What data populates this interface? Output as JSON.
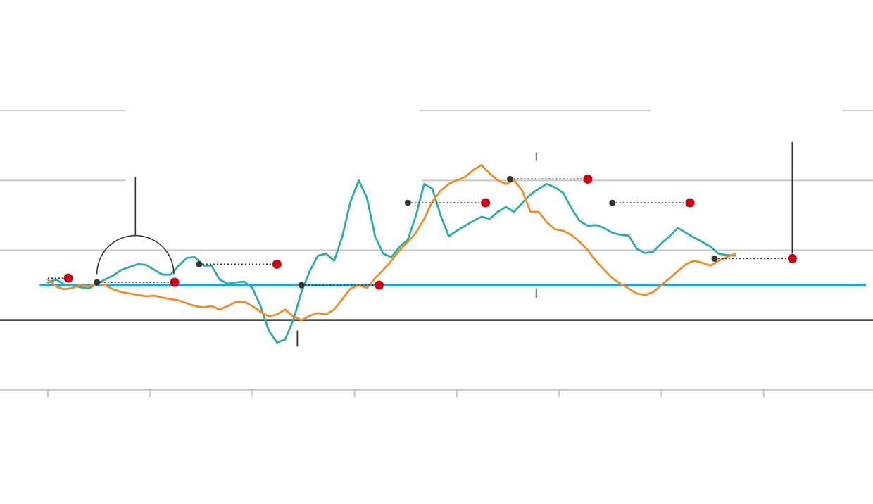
{
  "chart_data": {
    "type": "line",
    "colors": {
      "series_a": "#2ab0a3",
      "series_b": "#f28c26",
      "baseline": "#1aa3e8",
      "zero_line": "#333333",
      "grid": "#c8c8c8",
      "marker": "#cc0011",
      "anchor": "#333333"
    },
    "grid": true,
    "xlim": [
      0,
      100
    ],
    "ylim": [
      -2,
      4
    ],
    "gridlines_y": [
      -1,
      1,
      2,
      3
    ],
    "zero_y": 0,
    "baseline_y": 0.5,
    "x_ticks": [
      0,
      12.5,
      25,
      37.5,
      50,
      62.5,
      75,
      87.5
    ],
    "series": [
      {
        "key": "teal",
        "points": [
          [
            0,
            0.54
          ],
          [
            1,
            0.58
          ],
          [
            2,
            0.51
          ],
          [
            3,
            0.5
          ],
          [
            4,
            0.47
          ],
          [
            5,
            0.45
          ],
          [
            6,
            0.52
          ],
          [
            7,
            0.58
          ],
          [
            8,
            0.64
          ],
          [
            9,
            0.72
          ],
          [
            10,
            0.76
          ],
          [
            11,
            0.8
          ],
          [
            12,
            0.79
          ],
          [
            13,
            0.72
          ],
          [
            14,
            0.65
          ],
          [
            15,
            0.65
          ],
          [
            16,
            0.78
          ],
          [
            17,
            0.89
          ],
          [
            18,
            0.9
          ],
          [
            19,
            0.78
          ],
          [
            20,
            0.78
          ],
          [
            21,
            0.58
          ],
          [
            22,
            0.52
          ],
          [
            23,
            0.54
          ],
          [
            24,
            0.55
          ],
          [
            25,
            0.46
          ],
          [
            26,
            0.2
          ],
          [
            27,
            -0.15
          ],
          [
            28,
            -0.32
          ],
          [
            29,
            -0.28
          ],
          [
            30,
            0.0
          ],
          [
            31,
            0.4
          ],
          [
            32,
            0.7
          ],
          [
            33,
            0.92
          ],
          [
            34,
            0.95
          ],
          [
            35,
            0.85
          ],
          [
            36,
            1.2
          ],
          [
            37,
            1.7
          ],
          [
            38,
            2.0
          ],
          [
            39,
            1.75
          ],
          [
            40,
            1.2
          ],
          [
            41,
            0.95
          ],
          [
            42,
            0.9
          ],
          [
            43,
            1.05
          ],
          [
            44,
            1.15
          ],
          [
            45,
            1.5
          ],
          [
            46,
            1.95
          ],
          [
            47,
            1.88
          ],
          [
            48,
            1.5
          ],
          [
            49,
            1.2
          ],
          [
            50,
            1.28
          ],
          [
            51,
            1.35
          ],
          [
            52,
            1.42
          ],
          [
            53,
            1.48
          ],
          [
            54,
            1.45
          ],
          [
            55,
            1.55
          ],
          [
            56,
            1.62
          ],
          [
            57,
            1.55
          ],
          [
            58,
            1.68
          ],
          [
            59,
            1.8
          ],
          [
            60,
            1.88
          ],
          [
            61,
            1.95
          ],
          [
            62,
            1.9
          ],
          [
            63,
            1.82
          ],
          [
            64,
            1.6
          ],
          [
            65,
            1.42
          ],
          [
            66,
            1.35
          ],
          [
            67,
            1.36
          ],
          [
            68,
            1.32
          ],
          [
            69,
            1.25
          ],
          [
            70,
            1.22
          ],
          [
            71,
            1.21
          ],
          [
            72,
            1.02
          ],
          [
            73,
            0.96
          ],
          [
            74,
            0.98
          ],
          [
            75,
            1.1
          ],
          [
            76,
            1.2
          ],
          [
            77,
            1.32
          ],
          [
            78,
            1.25
          ],
          [
            79,
            1.18
          ],
          [
            80,
            1.12
          ],
          [
            81,
            1.05
          ],
          [
            82,
            0.95
          ],
          [
            83,
            0.93
          ],
          [
            84,
            0.92
          ]
        ]
      },
      {
        "key": "orange",
        "points": [
          [
            0,
            0.58
          ],
          [
            1,
            0.48
          ],
          [
            2,
            0.44
          ],
          [
            3,
            0.46
          ],
          [
            4,
            0.5
          ],
          [
            5,
            0.48
          ],
          [
            6,
            0.52
          ],
          [
            7,
            0.5
          ],
          [
            8,
            0.44
          ],
          [
            9,
            0.4
          ],
          [
            10,
            0.38
          ],
          [
            11,
            0.36
          ],
          [
            12,
            0.34
          ],
          [
            13,
            0.35
          ],
          [
            14,
            0.32
          ],
          [
            15,
            0.3
          ],
          [
            16,
            0.28
          ],
          [
            17,
            0.24
          ],
          [
            18,
            0.2
          ],
          [
            19,
            0.18
          ],
          [
            20,
            0.2
          ],
          [
            21,
            0.15
          ],
          [
            22,
            0.2
          ],
          [
            23,
            0.26
          ],
          [
            24,
            0.26
          ],
          [
            25,
            0.2
          ],
          [
            26,
            0.12
          ],
          [
            27,
            0.05
          ],
          [
            28,
            0.08
          ],
          [
            29,
            0.15
          ],
          [
            30,
            0.05
          ],
          [
            31,
            0.0
          ],
          [
            32,
            0.06
          ],
          [
            33,
            0.1
          ],
          [
            34,
            0.08
          ],
          [
            35,
            0.15
          ],
          [
            36,
            0.3
          ],
          [
            37,
            0.45
          ],
          [
            38,
            0.5
          ],
          [
            39,
            0.46
          ],
          [
            40,
            0.6
          ],
          [
            41,
            0.72
          ],
          [
            42,
            0.85
          ],
          [
            43,
            1.0
          ],
          [
            44,
            1.12
          ],
          [
            45,
            1.25
          ],
          [
            46,
            1.45
          ],
          [
            47,
            1.7
          ],
          [
            48,
            1.85
          ],
          [
            49,
            1.95
          ],
          [
            50,
            2.0
          ],
          [
            51,
            2.05
          ],
          [
            52,
            2.15
          ],
          [
            53,
            2.22
          ],
          [
            54,
            2.1
          ],
          [
            55,
            2.0
          ],
          [
            56,
            1.95
          ],
          [
            57,
            2.0
          ],
          [
            58,
            1.85
          ],
          [
            59,
            1.55
          ],
          [
            60,
            1.55
          ],
          [
            61,
            1.4
          ],
          [
            62,
            1.3
          ],
          [
            63,
            1.28
          ],
          [
            64,
            1.22
          ],
          [
            65,
            1.12
          ],
          [
            66,
            1.0
          ],
          [
            67,
            0.85
          ],
          [
            68,
            0.72
          ],
          [
            69,
            0.6
          ],
          [
            70,
            0.52
          ],
          [
            71,
            0.45
          ],
          [
            72,
            0.38
          ],
          [
            73,
            0.36
          ],
          [
            74,
            0.4
          ],
          [
            75,
            0.5
          ],
          [
            76,
            0.6
          ],
          [
            77,
            0.7
          ],
          [
            78,
            0.8
          ],
          [
            79,
            0.85
          ],
          [
            80,
            0.82
          ],
          [
            81,
            0.78
          ],
          [
            82,
            0.85
          ],
          [
            83,
            0.9
          ],
          [
            84,
            0.95
          ]
        ]
      }
    ],
    "annotations": [
      {
        "from": [
          0,
          0.6
        ],
        "to": [
          2.5,
          0.6
        ],
        "marker": true,
        "anchor": false
      },
      {
        "from": [
          6,
          0.54
        ],
        "to": [
          15.5,
          0.54
        ],
        "marker": true,
        "anchor": true
      },
      {
        "from": [
          18.5,
          0.8
        ],
        "to": [
          28,
          0.8
        ],
        "marker": true,
        "anchor": true
      },
      {
        "from": [
          31,
          0.5
        ],
        "to": [
          40.5,
          0.5
        ],
        "marker": true,
        "anchor": true
      },
      {
        "from": [
          44,
          1.68
        ],
        "to": [
          53.5,
          1.68
        ],
        "marker": true,
        "anchor": true
      },
      {
        "from": [
          56.5,
          2.02
        ],
        "to": [
          66,
          2.02
        ],
        "marker": true,
        "anchor": true
      },
      {
        "from": [
          69,
          1.68
        ],
        "to": [
          78.5,
          1.68
        ],
        "marker": true,
        "anchor": true
      },
      {
        "from": [
          81.5,
          0.88
        ],
        "to": [
          91,
          0.88
        ],
        "marker": true,
        "anchor": true
      }
    ],
    "callout": {
      "center": [
        10.7,
        0.66
      ],
      "radius_x": 4.7,
      "stem_top": 2.05
    },
    "vertical_marks": [
      {
        "x": 30.5,
        "y1": -0.15,
        "y2": -0.38
      },
      {
        "x": 59.7,
        "y1": 2.4,
        "y2": 2.28
      },
      {
        "x": 59.7,
        "y1": 0.45,
        "y2": 0.32
      },
      {
        "x": 91,
        "y1": 2.55,
        "y2": 0.95
      }
    ]
  }
}
